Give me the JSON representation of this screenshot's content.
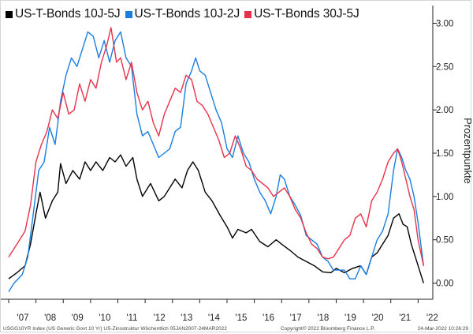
{
  "chart_data": {
    "type": "line",
    "title": "",
    "xlabel": "",
    "ylabel": "Prozentpunkte",
    "xlim": [
      2007.0,
      2022.25
    ],
    "ylim": [
      -0.15,
      3.15
    ],
    "y_ticks": [
      0.0,
      0.5,
      1.0,
      1.5,
      2.0,
      2.5,
      3.0
    ],
    "y_tick_labels": [
      "0.00",
      "0.50",
      "1.00",
      "1.50",
      "2.00",
      "2.50",
      "3.00"
    ],
    "x_ticks": [
      2007,
      2008,
      2009,
      2010,
      2011,
      2012,
      2013,
      2014,
      2015,
      2016,
      2017,
      2018,
      2019,
      2020,
      2021,
      2022
    ],
    "x_tick_labels": [
      "'07",
      "'08",
      "'09",
      "'10",
      "'11",
      "'12",
      "'13",
      "'14",
      "'15",
      "'16",
      "'17",
      "'18",
      "'19",
      "'20",
      "'21",
      "'22"
    ],
    "legend_position": "top-left",
    "grid": false,
    "series": [
      {
        "name": "US-T-Bonds 10J-5J",
        "color": "#000000",
        "points": [
          [
            2007.0,
            0.05
          ],
          [
            2007.3,
            0.12
          ],
          [
            2007.6,
            0.2
          ],
          [
            2007.8,
            0.45
          ],
          [
            2008.0,
            0.8
          ],
          [
            2008.15,
            1.05
          ],
          [
            2008.35,
            0.75
          ],
          [
            2008.6,
            0.95
          ],
          [
            2008.8,
            1.05
          ],
          [
            2008.9,
            1.38
          ],
          [
            2009.1,
            1.15
          ],
          [
            2009.35,
            1.3
          ],
          [
            2009.6,
            1.2
          ],
          [
            2009.8,
            1.4
          ],
          [
            2010.0,
            1.3
          ],
          [
            2010.2,
            1.4
          ],
          [
            2010.45,
            1.3
          ],
          [
            2010.7,
            1.45
          ],
          [
            2010.9,
            1.4
          ],
          [
            2011.1,
            1.48
          ],
          [
            2011.3,
            1.35
          ],
          [
            2011.55,
            1.45
          ],
          [
            2011.7,
            1.2
          ],
          [
            2011.9,
            1.0
          ],
          [
            2012.2,
            1.15
          ],
          [
            2012.5,
            0.95
          ],
          [
            2012.7,
            1.0
          ],
          [
            2012.9,
            1.1
          ],
          [
            2013.1,
            1.2
          ],
          [
            2013.35,
            1.1
          ],
          [
            2013.55,
            1.3
          ],
          [
            2013.75,
            1.4
          ],
          [
            2013.95,
            1.3
          ],
          [
            2014.2,
            1.05
          ],
          [
            2014.45,
            0.95
          ],
          [
            2014.75,
            0.78
          ],
          [
            2015.0,
            0.65
          ],
          [
            2015.2,
            0.52
          ],
          [
            2015.4,
            0.62
          ],
          [
            2015.7,
            0.58
          ],
          [
            2015.9,
            0.62
          ],
          [
            2016.2,
            0.48
          ],
          [
            2016.5,
            0.42
          ],
          [
            2016.8,
            0.5
          ],
          [
            2017.0,
            0.45
          ],
          [
            2017.3,
            0.38
          ],
          [
            2017.6,
            0.3
          ],
          [
            2017.9,
            0.25
          ],
          [
            2018.2,
            0.2
          ],
          [
            2018.5,
            0.13
          ],
          [
            2018.8,
            0.12
          ],
          [
            2019.0,
            0.17
          ],
          [
            2019.3,
            0.12
          ],
          [
            2019.6,
            0.17
          ],
          [
            2019.9,
            0.2
          ],
          [
            2020.1,
            0.1
          ],
          [
            2020.3,
            0.3
          ],
          [
            2020.5,
            0.35
          ],
          [
            2020.7,
            0.45
          ],
          [
            2020.9,
            0.55
          ],
          [
            2021.1,
            0.75
          ],
          [
            2021.3,
            0.8
          ],
          [
            2021.45,
            0.68
          ],
          [
            2021.6,
            0.65
          ],
          [
            2021.75,
            0.45
          ],
          [
            2021.9,
            0.3
          ],
          [
            2022.05,
            0.15
          ],
          [
            2022.2,
            0.0
          ]
        ]
      },
      {
        "name": "US-T-Bonds 10J-2J",
        "color": "#1a7ee0",
        "points": [
          [
            2007.0,
            -0.1
          ],
          [
            2007.2,
            0.0
          ],
          [
            2007.5,
            0.1
          ],
          [
            2007.7,
            0.3
          ],
          [
            2007.9,
            0.8
          ],
          [
            2008.1,
            1.3
          ],
          [
            2008.3,
            1.4
          ],
          [
            2008.5,
            1.8
          ],
          [
            2008.7,
            1.6
          ],
          [
            2008.9,
            2.1
          ],
          [
            2009.1,
            2.4
          ],
          [
            2009.3,
            2.6
          ],
          [
            2009.5,
            2.5
          ],
          [
            2009.7,
            2.7
          ],
          [
            2009.9,
            2.9
          ],
          [
            2010.1,
            2.85
          ],
          [
            2010.3,
            2.6
          ],
          [
            2010.5,
            2.8
          ],
          [
            2010.7,
            2.55
          ],
          [
            2010.9,
            2.8
          ],
          [
            2011.1,
            2.9
          ],
          [
            2011.3,
            2.6
          ],
          [
            2011.5,
            2.5
          ],
          [
            2011.7,
            1.95
          ],
          [
            2011.9,
            1.7
          ],
          [
            2012.1,
            1.75
          ],
          [
            2012.3,
            1.6
          ],
          [
            2012.5,
            1.45
          ],
          [
            2012.7,
            1.5
          ],
          [
            2012.9,
            1.55
          ],
          [
            2013.1,
            1.75
          ],
          [
            2013.3,
            1.8
          ],
          [
            2013.5,
            2.3
          ],
          [
            2013.7,
            2.45
          ],
          [
            2013.85,
            2.6
          ],
          [
            2014.0,
            2.45
          ],
          [
            2014.2,
            2.4
          ],
          [
            2014.4,
            2.2
          ],
          [
            2014.6,
            2.0
          ],
          [
            2014.8,
            1.85
          ],
          [
            2015.0,
            1.55
          ],
          [
            2015.2,
            1.45
          ],
          [
            2015.4,
            1.7
          ],
          [
            2015.6,
            1.5
          ],
          [
            2015.8,
            1.4
          ],
          [
            2016.0,
            1.2
          ],
          [
            2016.2,
            1.05
          ],
          [
            2016.4,
            0.95
          ],
          [
            2016.6,
            0.8
          ],
          [
            2016.8,
            1.0
          ],
          [
            2016.95,
            1.25
          ],
          [
            2017.1,
            1.2
          ],
          [
            2017.3,
            1.0
          ],
          [
            2017.5,
            0.9
          ],
          [
            2017.7,
            0.78
          ],
          [
            2017.9,
            0.55
          ],
          [
            2018.1,
            0.5
          ],
          [
            2018.3,
            0.45
          ],
          [
            2018.5,
            0.3
          ],
          [
            2018.7,
            0.25
          ],
          [
            2018.9,
            0.15
          ],
          [
            2019.1,
            0.15
          ],
          [
            2019.3,
            0.15
          ],
          [
            2019.5,
            0.05
          ],
          [
            2019.7,
            0.05
          ],
          [
            2019.9,
            0.2
          ],
          [
            2020.1,
            0.1
          ],
          [
            2020.3,
            0.3
          ],
          [
            2020.5,
            0.5
          ],
          [
            2020.7,
            0.6
          ],
          [
            2020.9,
            0.8
          ],
          [
            2021.1,
            1.3
          ],
          [
            2021.25,
            1.55
          ],
          [
            2021.4,
            1.45
          ],
          [
            2021.55,
            1.3
          ],
          [
            2021.7,
            1.2
          ],
          [
            2021.85,
            1.0
          ],
          [
            2022.0,
            0.7
          ],
          [
            2022.2,
            0.2
          ]
        ]
      },
      {
        "name": "US-T-Bonds 30J-5J",
        "color": "#e8324a",
        "points": [
          [
            2007.0,
            0.3
          ],
          [
            2007.3,
            0.45
          ],
          [
            2007.6,
            0.6
          ],
          [
            2007.8,
            0.9
          ],
          [
            2008.0,
            1.4
          ],
          [
            2008.2,
            1.6
          ],
          [
            2008.4,
            1.75
          ],
          [
            2008.6,
            2.0
          ],
          [
            2008.8,
            1.9
          ],
          [
            2009.0,
            2.2
          ],
          [
            2009.2,
            1.95
          ],
          [
            2009.4,
            2.0
          ],
          [
            2009.6,
            2.3
          ],
          [
            2009.8,
            2.1
          ],
          [
            2010.0,
            2.35
          ],
          [
            2010.2,
            2.25
          ],
          [
            2010.4,
            2.55
          ],
          [
            2010.6,
            2.75
          ],
          [
            2010.75,
            2.95
          ],
          [
            2010.95,
            2.55
          ],
          [
            2011.1,
            2.6
          ],
          [
            2011.3,
            2.35
          ],
          [
            2011.5,
            2.55
          ],
          [
            2011.7,
            2.2
          ],
          [
            2011.9,
            2.0
          ],
          [
            2012.1,
            2.1
          ],
          [
            2012.3,
            1.85
          ],
          [
            2012.5,
            1.7
          ],
          [
            2012.7,
            1.95
          ],
          [
            2012.9,
            2.1
          ],
          [
            2013.1,
            2.25
          ],
          [
            2013.3,
            2.2
          ],
          [
            2013.5,
            2.4
          ],
          [
            2013.7,
            2.35
          ],
          [
            2013.9,
            2.1
          ],
          [
            2014.1,
            2.05
          ],
          [
            2014.3,
            1.95
          ],
          [
            2014.5,
            1.8
          ],
          [
            2014.7,
            1.65
          ],
          [
            2014.9,
            1.45
          ],
          [
            2015.1,
            1.5
          ],
          [
            2015.3,
            1.7
          ],
          [
            2015.5,
            1.55
          ],
          [
            2015.7,
            1.35
          ],
          [
            2015.9,
            1.3
          ],
          [
            2016.1,
            1.2
          ],
          [
            2016.3,
            1.15
          ],
          [
            2016.5,
            1.1
          ],
          [
            2016.7,
            1.0
          ],
          [
            2016.9,
            1.05
          ],
          [
            2017.1,
            1.1
          ],
          [
            2017.3,
            1.0
          ],
          [
            2017.5,
            0.85
          ],
          [
            2017.7,
            0.75
          ],
          [
            2017.9,
            0.58
          ],
          [
            2018.1,
            0.45
          ],
          [
            2018.3,
            0.4
          ],
          [
            2018.5,
            0.3
          ],
          [
            2018.7,
            0.28
          ],
          [
            2018.9,
            0.3
          ],
          [
            2019.1,
            0.4
          ],
          [
            2019.3,
            0.5
          ],
          [
            2019.5,
            0.55
          ],
          [
            2019.7,
            0.75
          ],
          [
            2019.9,
            0.8
          ],
          [
            2020.1,
            0.65
          ],
          [
            2020.3,
            0.95
          ],
          [
            2020.5,
            1.05
          ],
          [
            2020.7,
            1.2
          ],
          [
            2020.9,
            1.4
          ],
          [
            2021.1,
            1.5
          ],
          [
            2021.25,
            1.55
          ],
          [
            2021.4,
            1.4
          ],
          [
            2021.55,
            1.2
          ],
          [
            2021.7,
            1.0
          ],
          [
            2021.85,
            0.85
          ],
          [
            2022.0,
            0.5
          ],
          [
            2022.2,
            0.2
          ]
        ]
      }
    ]
  },
  "footer": {
    "left": "USGG10YR Index (US Generic Govt 10 Yr) US-Zinsstruktur  Wöchentlich 05JAN2007-24MAR2022",
    "center": "Copyright© 2022 Bloomberg Finance L.P.",
    "right": "24-Mar-2022 10:26:29"
  }
}
